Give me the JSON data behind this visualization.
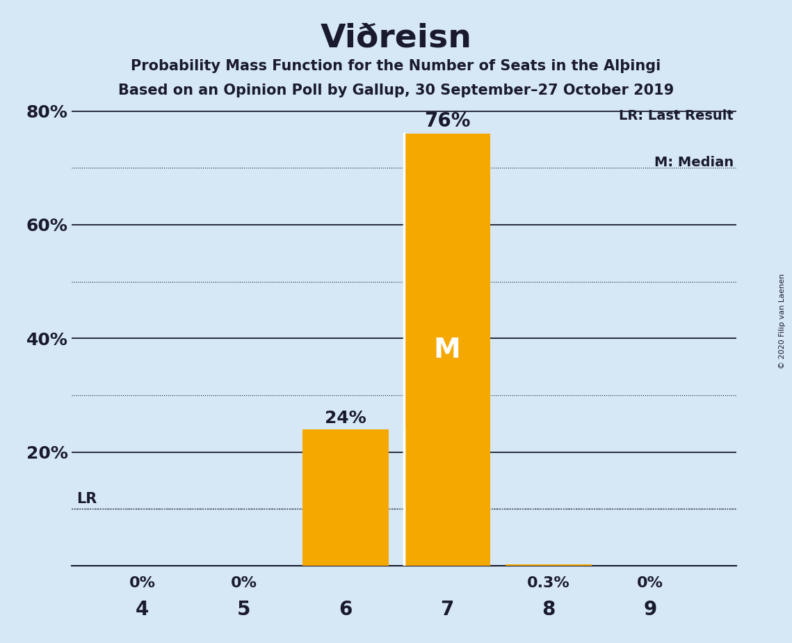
{
  "title": "Viðreisn",
  "subtitle1": "Probability Mass Function for the Number of Seats in the Alþинги",
  "subtitle1_text": "Probability Mass Function for the Number of Seats in the Alþingi",
  "subtitle2": "Based on an Opinion Poll by Gallup, 30 September–27 October 2019",
  "copyright": "© 2020 Filip van Laenen",
  "legend_lr": "LR: Last Result",
  "legend_m": "M: Median",
  "categories": [
    4,
    5,
    6,
    7,
    8,
    9
  ],
  "values": [
    0.0,
    0.0,
    0.24,
    0.76,
    0.003,
    0.0
  ],
  "bar_labels": [
    "0%",
    "0%",
    "24%",
    "76%",
    "0.3%",
    "0%"
  ],
  "bar_color": "#F5A800",
  "background_color": "#D6E8F5",
  "text_color": "#1a1a2e",
  "ylim_max": 0.82,
  "major_yticks": [
    0.2,
    0.4,
    0.6,
    0.8
  ],
  "minor_yticks": [
    0.1,
    0.3,
    0.5,
    0.7
  ],
  "lr_value": 0.1,
  "median_bar": 7,
  "bar_width": 0.85
}
